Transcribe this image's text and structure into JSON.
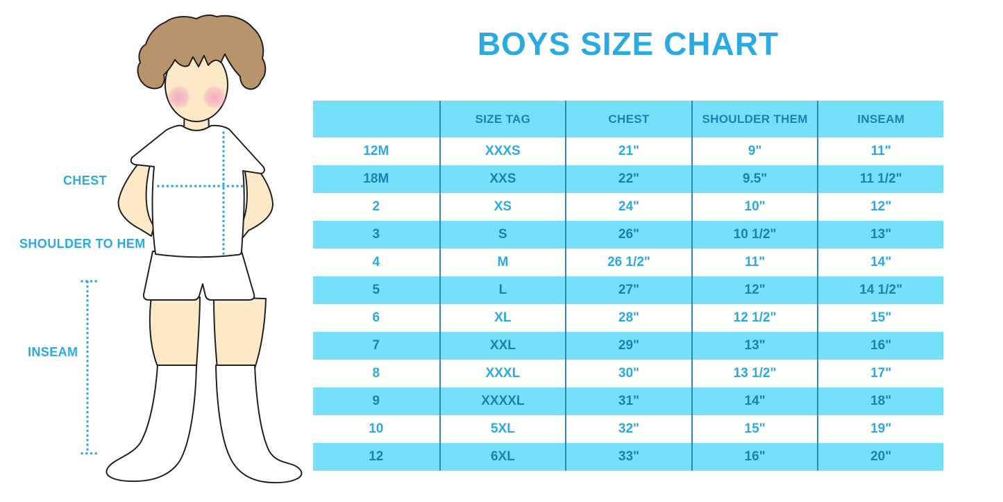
{
  "title": "BOYS SIZE CHART",
  "figure": {
    "labels": {
      "chest": "CHEST",
      "shoulder_to_hem": "SHOULDER TO HEM",
      "inseam": "INSEAM"
    }
  },
  "colors": {
    "accent_blue": "#29abe2",
    "stripe_blue": "#74e0fa",
    "text_on_stripe": "#1f80ae",
    "divider_blue": "#2d86b8",
    "skin": "#fce9c8",
    "hair": "#b8946c",
    "blush": "#f3aabf"
  },
  "chart_data": {
    "type": "table",
    "title": "BOYS SIZE CHART",
    "columns": [
      "",
      "SIZE TAG",
      "CHEST",
      "SHOULDER THEM",
      "INSEAM"
    ],
    "rows": [
      [
        "12M",
        "XXXS",
        "21\"",
        "9\"",
        "11\""
      ],
      [
        "18M",
        "XXS",
        "22\"",
        "9.5\"",
        "11 1/2\""
      ],
      [
        "2",
        "XS",
        "24\"",
        "10\"",
        "12\""
      ],
      [
        "3",
        "S",
        "26\"",
        "10 1/2\"",
        "13\""
      ],
      [
        "4",
        "M",
        "26 1/2\"",
        "11\"",
        "14\""
      ],
      [
        "5",
        "L",
        "27\"",
        "12\"",
        "14 1/2\""
      ],
      [
        "6",
        "XL",
        "28\"",
        "12 1/2\"",
        "15\""
      ],
      [
        "7",
        "XXL",
        "29\"",
        "13\"",
        "16\""
      ],
      [
        "8",
        "XXXL",
        "30\"",
        "13 1/2\"",
        "17\""
      ],
      [
        "9",
        "XXXXL",
        "31\"",
        "14\"",
        "18\""
      ],
      [
        "10",
        "5XL",
        "32\"",
        "15\"",
        "19\""
      ],
      [
        "12",
        "6XL",
        "33\"",
        "16\"",
        "20\""
      ]
    ],
    "layout": {
      "striped": true,
      "stripe_pattern": "header and every 2nd data row light-cyan",
      "grid": "vertical column dividers only, no outer border"
    }
  }
}
